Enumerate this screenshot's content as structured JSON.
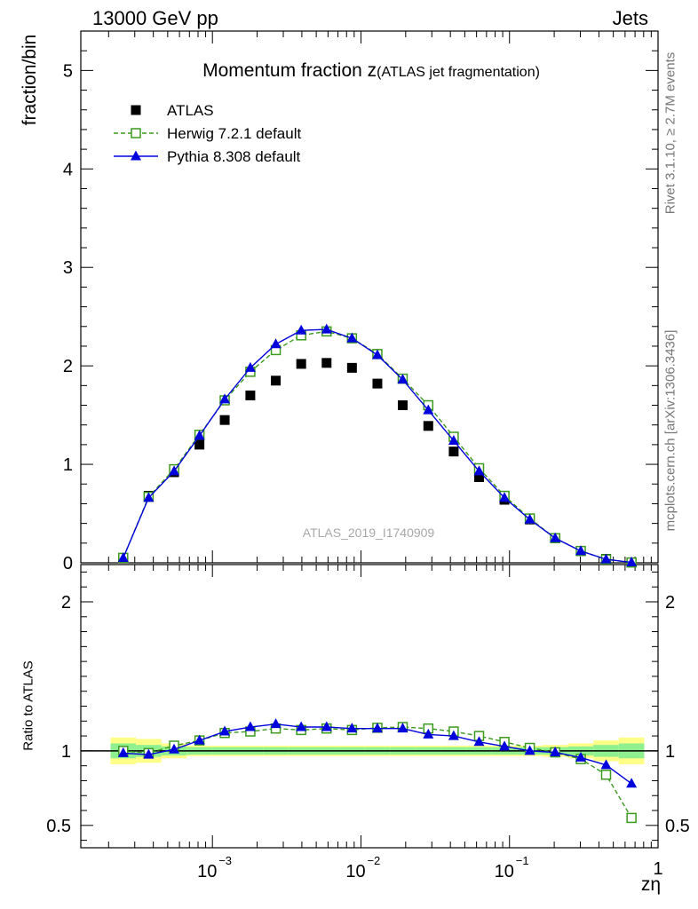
{
  "header": {
    "left": "13000 GeV pp",
    "right": "Jets"
  },
  "side_labels": {
    "top": "Rivet 3.1.10, ≥ 2.7M events",
    "bottom": "mcplots.cern.ch [arXiv:1306.3436]"
  },
  "colors": {
    "data": "#000000",
    "herwig": "#3a9a1e",
    "pythia": "#0000dd",
    "band_inner": "#8ff08f",
    "band_outer": "#ffff88"
  },
  "chart_data": [
    {
      "type": "scatter",
      "title": "Momentum fraction z",
      "title_suffix": "(ATLAS jet fragmentation)",
      "ylabel": "fraction/bin",
      "watermark": "ATLAS_2019_I1740909",
      "xscale": "log",
      "xlim": [
        0.00013,
        1
      ],
      "ylim": [
        0,
        5.4
      ],
      "yticks": [
        0,
        1,
        2,
        3,
        4,
        5
      ],
      "legend_position": "top-left",
      "series": [
        {
          "name": "ATLAS",
          "marker": "filled-square",
          "x": [
            0.000251,
            0.000372,
            0.000552,
            0.000818,
            0.00121,
            0.0018,
            0.00267,
            0.00396,
            0.00587,
            0.0087,
            0.0129,
            0.0191,
            0.0284,
            0.0421,
            0.0624,
            0.0925,
            0.137,
            0.203,
            0.302,
            0.447,
            0.663
          ],
          "y": [
            0.05,
            0.68,
            0.92,
            1.2,
            1.45,
            1.7,
            1.85,
            2.02,
            2.03,
            1.98,
            1.82,
            1.6,
            1.39,
            1.13,
            0.87,
            0.64,
            0.44,
            0.25,
            0.12,
            0.04,
            0.005
          ]
        },
        {
          "name": "Herwig 7.2.1 default",
          "marker": "open-square",
          "line": "dashed",
          "x": [
            0.000251,
            0.000372,
            0.000552,
            0.000818,
            0.00121,
            0.0018,
            0.00267,
            0.00396,
            0.00587,
            0.0087,
            0.0129,
            0.0191,
            0.0284,
            0.0421,
            0.0624,
            0.0925,
            0.137,
            0.203,
            0.302,
            0.447,
            0.663
          ],
          "y": [
            0.05,
            0.67,
            0.95,
            1.3,
            1.65,
            1.94,
            2.16,
            2.31,
            2.35,
            2.28,
            2.12,
            1.87,
            1.6,
            1.28,
            0.96,
            0.68,
            0.45,
            0.25,
            0.12,
            0.035,
            0.003
          ]
        },
        {
          "name": "Pythia 8.308 default",
          "marker": "filled-triangle",
          "line": "solid",
          "x": [
            0.000251,
            0.000372,
            0.000552,
            0.000818,
            0.00121,
            0.0018,
            0.00267,
            0.00396,
            0.00587,
            0.0087,
            0.0129,
            0.0191,
            0.0284,
            0.0421,
            0.0624,
            0.0925,
            0.137,
            0.203,
            0.302,
            0.447,
            0.663
          ],
          "y": [
            0.05,
            0.66,
            0.93,
            1.29,
            1.66,
            1.98,
            2.22,
            2.36,
            2.37,
            2.28,
            2.11,
            1.86,
            1.55,
            1.24,
            0.93,
            0.66,
            0.44,
            0.25,
            0.12,
            0.035,
            0.004
          ]
        }
      ]
    },
    {
      "type": "line",
      "ylabel": "Ratio to ATLAS",
      "xlabel": "zη",
      "xscale": "log",
      "xlim": [
        0.00013,
        1
      ],
      "ylim": [
        0.35,
        2.25
      ],
      "yticks": [
        0.5,
        1,
        2
      ],
      "xticks": [
        0.001,
        0.01,
        0.1,
        1
      ],
      "reference_line": 1,
      "bands": {
        "x": [
          0.000251,
          0.000372,
          0.000552,
          0.000818,
          0.00121,
          0.0018,
          0.00267,
          0.00396,
          0.00587,
          0.0087,
          0.0129,
          0.0191,
          0.0284,
          0.0421,
          0.0624,
          0.0925,
          0.137,
          0.203,
          0.302,
          0.447,
          0.663
        ],
        "inner_halfwidth": [
          0.05,
          0.04,
          0.03,
          0.025,
          0.025,
          0.025,
          0.025,
          0.025,
          0.025,
          0.025,
          0.025,
          0.025,
          0.025,
          0.025,
          0.025,
          0.025,
          0.025,
          0.025,
          0.03,
          0.04,
          0.05
        ],
        "outer_halfwidth": [
          0.09,
          0.08,
          0.05,
          0.035,
          0.035,
          0.035,
          0.035,
          0.035,
          0.035,
          0.035,
          0.035,
          0.035,
          0.035,
          0.035,
          0.035,
          0.035,
          0.035,
          0.04,
          0.05,
          0.07,
          0.09
        ]
      },
      "series": [
        {
          "name": "Herwig 7.2.1 default",
          "marker": "open-square",
          "line": "dashed",
          "x": [
            0.000251,
            0.000372,
            0.000552,
            0.000818,
            0.00121,
            0.0018,
            0.00267,
            0.00396,
            0.00587,
            0.0087,
            0.0129,
            0.0191,
            0.0284,
            0.0421,
            0.0624,
            0.0925,
            0.137,
            0.203,
            0.302,
            0.447,
            0.663
          ],
          "y": [
            1.0,
            0.985,
            1.035,
            1.07,
            1.12,
            1.13,
            1.15,
            1.14,
            1.15,
            1.14,
            1.155,
            1.16,
            1.15,
            1.13,
            1.1,
            1.06,
            1.02,
            0.99,
            0.945,
            0.84,
            0.55
          ]
        },
        {
          "name": "Pythia 8.308 default",
          "marker": "filled-triangle",
          "line": "solid",
          "x": [
            0.000251,
            0.000372,
            0.000552,
            0.000818,
            0.00121,
            0.0018,
            0.00267,
            0.00396,
            0.00587,
            0.0087,
            0.0129,
            0.0191,
            0.0284,
            0.0421,
            0.0624,
            0.0925,
            0.137,
            0.203,
            0.302,
            0.447,
            0.663
          ],
          "y": [
            0.985,
            0.975,
            1.01,
            1.07,
            1.13,
            1.16,
            1.18,
            1.16,
            1.16,
            1.15,
            1.15,
            1.15,
            1.11,
            1.1,
            1.06,
            1.03,
            1.0,
            0.99,
            0.955,
            0.905,
            0.78
          ]
        }
      ]
    }
  ]
}
